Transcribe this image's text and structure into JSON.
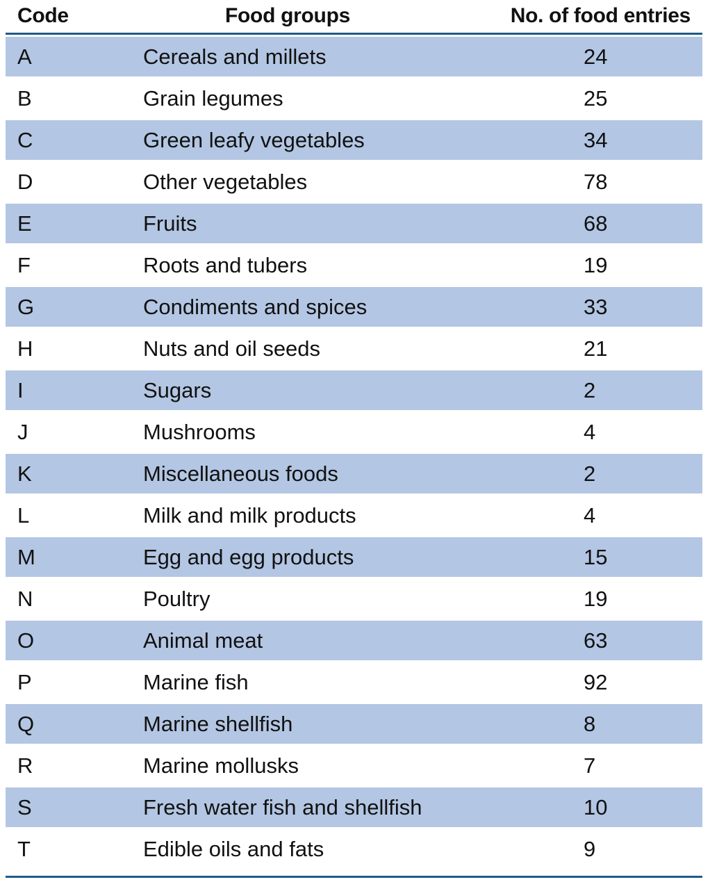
{
  "table": {
    "headers": {
      "code": "Code",
      "group": "Food groups",
      "count": "No. of food entries"
    },
    "rows": [
      {
        "code": "A",
        "group": "Cereals and millets",
        "count": "24"
      },
      {
        "code": "B",
        "group": "Grain legumes",
        "count": "25"
      },
      {
        "code": "C",
        "group": "Green leafy vegetables",
        "count": "34"
      },
      {
        "code": "D",
        "group": "Other vegetables",
        "count": "78"
      },
      {
        "code": "E",
        "group": "Fruits",
        "count": "68"
      },
      {
        "code": "F",
        "group": "Roots and tubers",
        "count": "19"
      },
      {
        "code": "G",
        "group": "Condiments and spices",
        "count": "33"
      },
      {
        "code": "H",
        "group": "Nuts and oil seeds",
        "count": "21"
      },
      {
        "code": "I",
        "group": "Sugars",
        "count": "2"
      },
      {
        "code": "J",
        "group": "Mushrooms",
        "count": "4"
      },
      {
        "code": "K",
        "group": "Miscellaneous foods",
        "count": "2"
      },
      {
        "code": "L",
        "group": "Milk and milk products",
        "count": "4"
      },
      {
        "code": "M",
        "group": "Egg and egg products",
        "count": "15"
      },
      {
        "code": "N",
        "group": "Poultry",
        "count": "19"
      },
      {
        "code": "O",
        "group": "Animal meat",
        "count": "63"
      },
      {
        "code": "P",
        "group": "Marine fish",
        "count": "92"
      },
      {
        "code": "Q",
        "group": "Marine shellfish",
        "count": "8"
      },
      {
        "code": "R",
        "group": "Marine mollusks",
        "count": "7"
      },
      {
        "code": "S",
        "group": "Fresh water fish and shellfish",
        "count": "10"
      },
      {
        "code": "T",
        "group": "Edible oils and fats",
        "count": "9"
      }
    ]
  },
  "colors": {
    "shaded_row": "#b3c6e3",
    "rule": "#1f5a88",
    "text": "#111111"
  }
}
